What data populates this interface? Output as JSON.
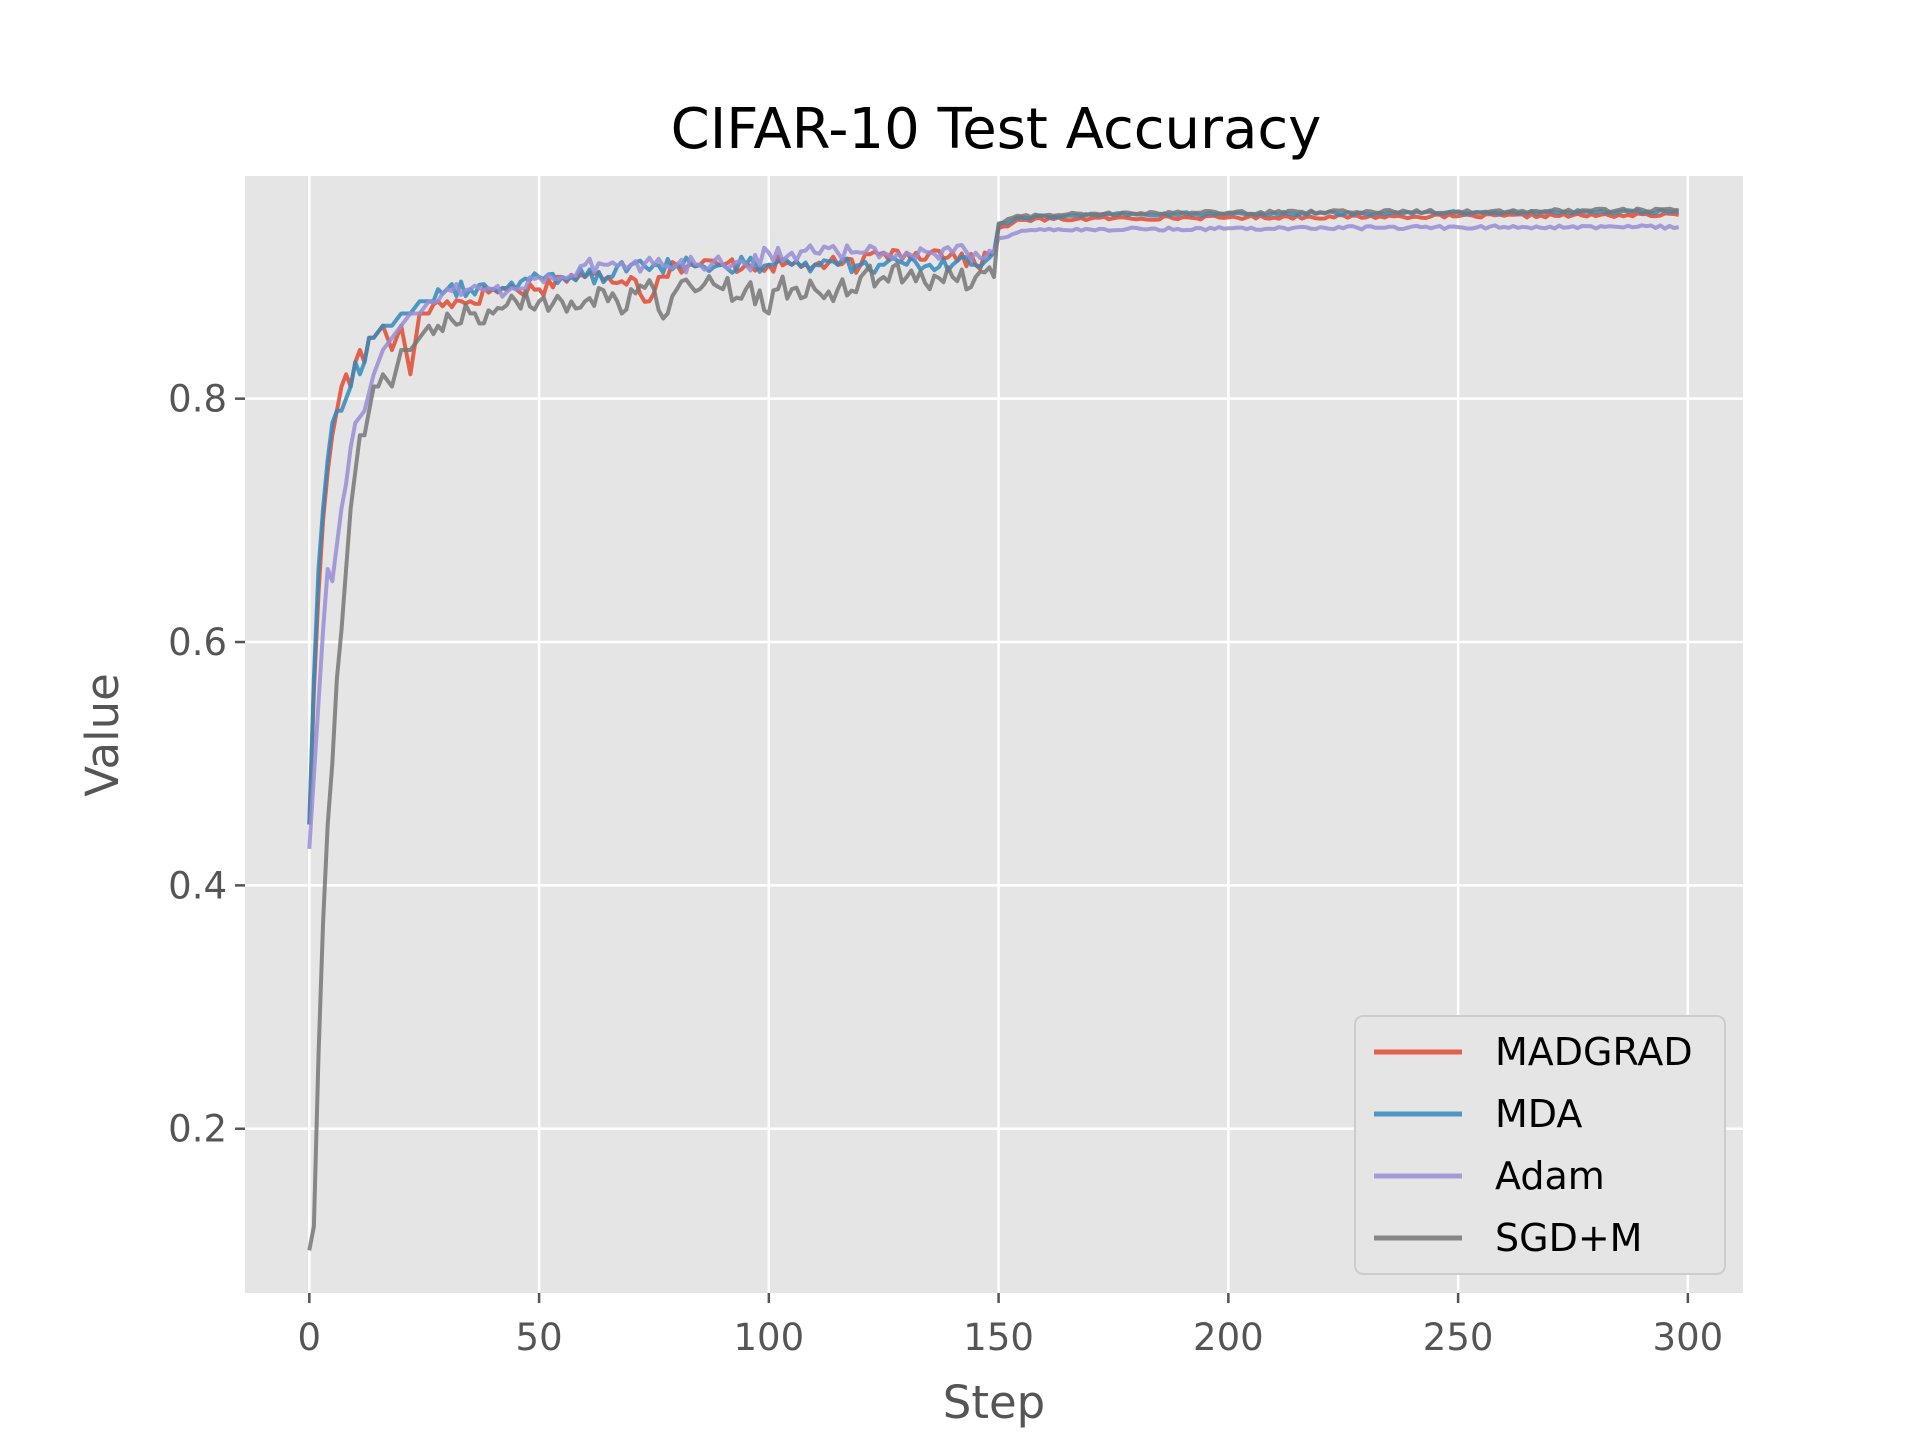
{
  "chart_data": {
    "type": "line",
    "title": "CIFAR-10 Test Accuracy",
    "xlabel": "Step",
    "ylabel": "Value",
    "xlim": [
      -14,
      312
    ],
    "ylim": [
      0.065,
      0.983
    ],
    "xticks": [
      0,
      50,
      100,
      150,
      200,
      250,
      300
    ],
    "yticks": [
      0.2,
      0.4,
      0.6,
      0.8
    ],
    "xtick_labels": [
      "0",
      "50",
      "100",
      "150",
      "200",
      "250",
      "300"
    ],
    "ytick_labels": [
      "0.2",
      "0.4",
      "0.6",
      "0.8"
    ],
    "grid": true,
    "legend_position": "lower-right",
    "background": "#e5e5e5",
    "series": [
      {
        "name": "MADGRAD",
        "color": "#e24a33",
        "points": [
          [
            0,
            0.45
          ],
          [
            1,
            0.56
          ],
          [
            2,
            0.64
          ],
          [
            3,
            0.7
          ],
          [
            4,
            0.74
          ],
          [
            5,
            0.77
          ],
          [
            6,
            0.79
          ],
          [
            7,
            0.81
          ],
          [
            8,
            0.82
          ],
          [
            9,
            0.81
          ],
          [
            10,
            0.83
          ],
          [
            11,
            0.84
          ],
          [
            12,
            0.83
          ],
          [
            13,
            0.85
          ],
          [
            14,
            0.85
          ],
          [
            16,
            0.86
          ],
          [
            18,
            0.84
          ],
          [
            20,
            0.86
          ],
          [
            22,
            0.82
          ],
          [
            24,
            0.87
          ],
          [
            26,
            0.87
          ],
          [
            28,
            0.88
          ],
          [
            30,
            0.88
          ],
          [
            35,
            0.88
          ],
          [
            40,
            0.89
          ],
          [
            45,
            0.89
          ],
          [
            50,
            0.89
          ],
          [
            55,
            0.9
          ],
          [
            60,
            0.9
          ],
          [
            65,
            0.9
          ],
          [
            70,
            0.9
          ],
          [
            74,
            0.88
          ],
          [
            76,
            0.9
          ],
          [
            80,
            0.91
          ],
          [
            85,
            0.91
          ],
          [
            90,
            0.91
          ],
          [
            95,
            0.91
          ],
          [
            100,
            0.91
          ],
          [
            105,
            0.91
          ],
          [
            110,
            0.91
          ],
          [
            115,
            0.91
          ],
          [
            120,
            0.91
          ],
          [
            125,
            0.92
          ],
          [
            130,
            0.92
          ],
          [
            135,
            0.92
          ],
          [
            140,
            0.92
          ],
          [
            145,
            0.91
          ],
          [
            149,
            0.92
          ],
          [
            150,
            0.94
          ],
          [
            155,
            0.947
          ],
          [
            170,
            0.948
          ],
          [
            200,
            0.949
          ],
          [
            250,
            0.95
          ],
          [
            298,
            0.951
          ]
        ]
      },
      {
        "name": "MDA",
        "color": "#348abd",
        "points": [
          [
            0,
            0.45
          ],
          [
            1,
            0.57
          ],
          [
            2,
            0.66
          ],
          [
            3,
            0.71
          ],
          [
            4,
            0.75
          ],
          [
            5,
            0.78
          ],
          [
            6,
            0.79
          ],
          [
            7,
            0.79
          ],
          [
            8,
            0.8
          ],
          [
            9,
            0.81
          ],
          [
            10,
            0.83
          ],
          [
            11,
            0.82
          ],
          [
            12,
            0.83
          ],
          [
            13,
            0.85
          ],
          [
            14,
            0.85
          ],
          [
            16,
            0.86
          ],
          [
            18,
            0.86
          ],
          [
            20,
            0.87
          ],
          [
            22,
            0.87
          ],
          [
            24,
            0.88
          ],
          [
            26,
            0.88
          ],
          [
            28,
            0.89
          ],
          [
            30,
            0.89
          ],
          [
            35,
            0.89
          ],
          [
            40,
            0.89
          ],
          [
            45,
            0.89
          ],
          [
            50,
            0.9
          ],
          [
            55,
            0.9
          ],
          [
            60,
            0.9
          ],
          [
            65,
            0.9
          ],
          [
            70,
            0.91
          ],
          [
            75,
            0.91
          ],
          [
            80,
            0.91
          ],
          [
            85,
            0.91
          ],
          [
            90,
            0.91
          ],
          [
            95,
            0.91
          ],
          [
            100,
            0.91
          ],
          [
            105,
            0.91
          ],
          [
            110,
            0.91
          ],
          [
            115,
            0.91
          ],
          [
            120,
            0.91
          ],
          [
            125,
            0.91
          ],
          [
            130,
            0.91
          ],
          [
            135,
            0.91
          ],
          [
            140,
            0.91
          ],
          [
            145,
            0.91
          ],
          [
            149,
            0.92
          ],
          [
            150,
            0.943
          ],
          [
            155,
            0.949
          ],
          [
            170,
            0.951
          ],
          [
            200,
            0.952
          ],
          [
            250,
            0.953
          ],
          [
            298,
            0.954
          ]
        ]
      },
      {
        "name": "Adam",
        "color": "#988ed5",
        "points": [
          [
            0,
            0.43
          ],
          [
            1,
            0.49
          ],
          [
            2,
            0.55
          ],
          [
            3,
            0.61
          ],
          [
            4,
            0.66
          ],
          [
            5,
            0.65
          ],
          [
            6,
            0.68
          ],
          [
            7,
            0.71
          ],
          [
            8,
            0.73
          ],
          [
            9,
            0.76
          ],
          [
            10,
            0.78
          ],
          [
            12,
            0.79
          ],
          [
            14,
            0.82
          ],
          [
            16,
            0.84
          ],
          [
            18,
            0.85
          ],
          [
            20,
            0.86
          ],
          [
            22,
            0.87
          ],
          [
            24,
            0.87
          ],
          [
            26,
            0.88
          ],
          [
            28,
            0.88
          ],
          [
            30,
            0.89
          ],
          [
            35,
            0.89
          ],
          [
            40,
            0.89
          ],
          [
            45,
            0.89
          ],
          [
            50,
            0.9
          ],
          [
            55,
            0.9
          ],
          [
            60,
            0.91
          ],
          [
            65,
            0.91
          ],
          [
            70,
            0.91
          ],
          [
            75,
            0.91
          ],
          [
            80,
            0.91
          ],
          [
            85,
            0.91
          ],
          [
            90,
            0.91
          ],
          [
            95,
            0.91
          ],
          [
            100,
            0.92
          ],
          [
            105,
            0.92
          ],
          [
            110,
            0.92
          ],
          [
            115,
            0.92
          ],
          [
            120,
            0.92
          ],
          [
            125,
            0.92
          ],
          [
            130,
            0.92
          ],
          [
            135,
            0.92
          ],
          [
            140,
            0.92
          ],
          [
            145,
            0.92
          ],
          [
            149,
            0.92
          ],
          [
            150,
            0.932
          ],
          [
            155,
            0.938
          ],
          [
            170,
            0.939
          ],
          [
            200,
            0.94
          ],
          [
            250,
            0.941
          ],
          [
            298,
            0.941
          ]
        ]
      },
      {
        "name": "SGD+M",
        "color": "#777777",
        "points": [
          [
            0,
            0.1
          ],
          [
            1,
            0.12
          ],
          [
            2,
            0.26
          ],
          [
            3,
            0.37
          ],
          [
            4,
            0.45
          ],
          [
            5,
            0.5
          ],
          [
            6,
            0.57
          ],
          [
            7,
            0.61
          ],
          [
            8,
            0.66
          ],
          [
            9,
            0.71
          ],
          [
            10,
            0.74
          ],
          [
            11,
            0.77
          ],
          [
            12,
            0.77
          ],
          [
            13,
            0.79
          ],
          [
            14,
            0.81
          ],
          [
            15,
            0.81
          ],
          [
            16,
            0.82
          ],
          [
            18,
            0.81
          ],
          [
            20,
            0.84
          ],
          [
            22,
            0.84
          ],
          [
            24,
            0.85
          ],
          [
            26,
            0.86
          ],
          [
            28,
            0.86
          ],
          [
            30,
            0.87
          ],
          [
            35,
            0.87
          ],
          [
            40,
            0.87
          ],
          [
            45,
            0.88
          ],
          [
            50,
            0.88
          ],
          [
            55,
            0.88
          ],
          [
            60,
            0.88
          ],
          [
            65,
            0.88
          ],
          [
            68,
            0.87
          ],
          [
            70,
            0.89
          ],
          [
            75,
            0.89
          ],
          [
            78,
            0.87
          ],
          [
            80,
            0.89
          ],
          [
            85,
            0.89
          ],
          [
            90,
            0.89
          ],
          [
            95,
            0.89
          ],
          [
            100,
            0.87
          ],
          [
            102,
            0.89
          ],
          [
            105,
            0.89
          ],
          [
            110,
            0.89
          ],
          [
            115,
            0.89
          ],
          [
            120,
            0.9
          ],
          [
            125,
            0.9
          ],
          [
            130,
            0.9
          ],
          [
            135,
            0.89
          ],
          [
            140,
            0.9
          ],
          [
            145,
            0.9
          ],
          [
            149,
            0.9
          ],
          [
            150,
            0.944
          ],
          [
            155,
            0.95
          ],
          [
            170,
            0.952
          ],
          [
            200,
            0.953
          ],
          [
            250,
            0.954
          ],
          [
            298,
            0.955
          ]
        ]
      }
    ]
  }
}
